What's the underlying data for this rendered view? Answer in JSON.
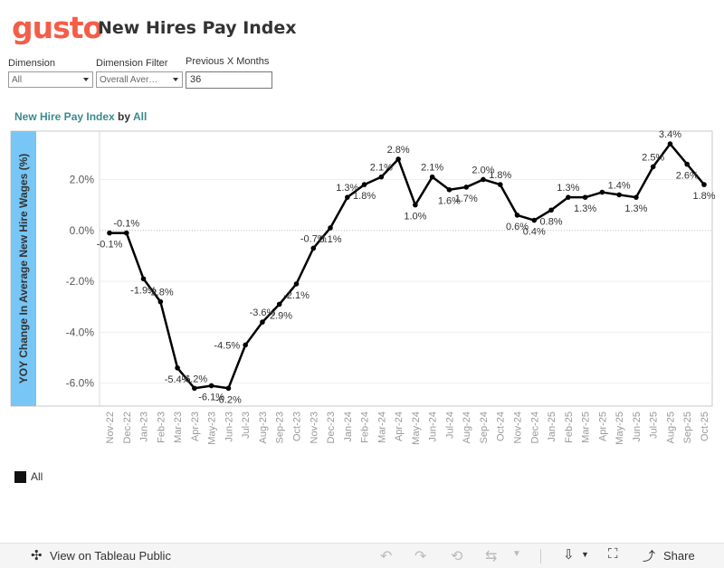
{
  "header": {
    "logo": "gusto",
    "title": "New Hires Pay Index"
  },
  "filters": {
    "dimension_label": "Dimension",
    "dimension_value": "All",
    "dimension_filter_label": "Dimension Filter",
    "dimension_filter_value": "Overall Aver…",
    "months_label": "Previous X Months",
    "months_value": "36"
  },
  "chart_heading": {
    "part1": "New Hire Pay Index",
    "part2": " by ",
    "part3": "All"
  },
  "legend": {
    "label": "All",
    "color": "#111111"
  },
  "toolbar": {
    "view_label": "View on Tableau Public",
    "share_label": "Share"
  },
  "colors": {
    "accent": "#f45d48",
    "teal": "#3a8a8c",
    "axis_band": "#78c6f5",
    "line": "#000000"
  },
  "chart_data": {
    "type": "line",
    "title": "",
    "ylabel": "YOY Change In Average New Hire Wages (%)",
    "xlabel": "",
    "ylim": [
      -6.9,
      3.9
    ],
    "yticks": [
      2.0,
      0.0,
      -2.0,
      -4.0,
      -6.0
    ],
    "ytick_labels": [
      "2.0%",
      "0.0%",
      "-2.0%",
      "-4.0%",
      "-6.0%"
    ],
    "categories": [
      "Nov-22",
      "Dec-22",
      "Jan-23",
      "Feb-23",
      "Mar-23",
      "Apr-23",
      "May-23",
      "Jun-23",
      "Jul-23",
      "Aug-23",
      "Sep-23",
      "Oct-23",
      "Nov-23",
      "Dec-23",
      "Jan-24",
      "Feb-24",
      "Mar-24",
      "Apr-24",
      "May-24",
      "Jun-24",
      "Jul-24",
      "Aug-24",
      "Sep-24",
      "Oct-24",
      "Nov-24",
      "Dec-24",
      "Jan-25",
      "Feb-25",
      "Mar-25",
      "Apr-25",
      "May-25",
      "Jun-25",
      "Jul-25",
      "Aug-25",
      "Sep-25",
      "Oct-25"
    ],
    "series": [
      {
        "name": "All",
        "values": [
          -0.1,
          -0.1,
          -1.9,
          -2.8,
          -5.4,
          -6.2,
          -6.1,
          -6.2,
          -4.5,
          -3.6,
          -2.9,
          -2.1,
          -0.7,
          0.1,
          1.3,
          1.8,
          2.1,
          2.8,
          1.0,
          2.1,
          1.6,
          1.7,
          2.0,
          1.8,
          0.6,
          0.4,
          0.8,
          1.3,
          1.3,
          1.5,
          1.4,
          1.3,
          2.5,
          3.4,
          2.6,
          1.8
        ],
        "labels": [
          "-0.1%",
          "-0.1%",
          "-1.9%",
          "-2.8%",
          "-5.4%",
          "-6.2%",
          "-6.1%",
          "-6.2%",
          "-4.5%",
          "-3.6%",
          "-2.9%",
          "-2.1%",
          "-0.7%",
          "0.1%",
          "1.3%",
          "1.8%",
          "2.1%",
          "2.8%",
          "1.0%",
          "2.1%",
          "1.6%",
          "1.7%",
          "2.0%",
          "1.8%",
          "0.6%",
          "0.4%",
          "0.8%",
          "1.3%",
          "1.3%",
          "",
          "1.4%",
          "1.3%",
          "2.5%",
          "3.4%",
          "2.6%",
          "1.8%"
        ],
        "label_pos": [
          "below",
          "above",
          "below",
          "above",
          "below",
          "above",
          "below",
          "below",
          "left",
          "above",
          "below",
          "below",
          "above",
          "below",
          "above",
          "below",
          "above",
          "above",
          "below",
          "above",
          "below",
          "below",
          "above",
          "above",
          "below",
          "below",
          "below",
          "above",
          "below",
          "",
          "above",
          "below",
          "above",
          "above",
          "below",
          "below"
        ]
      }
    ],
    "grid": true,
    "legend_position": "bottom-left"
  }
}
